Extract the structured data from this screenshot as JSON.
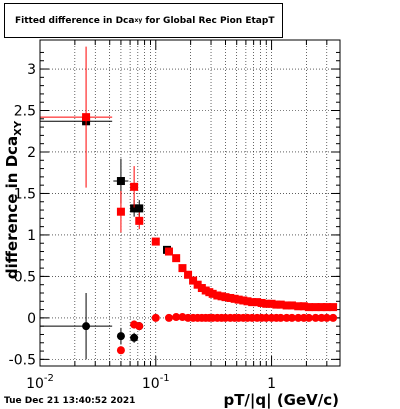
{
  "chart_data": {
    "type": "scatter",
    "title": "Fitted difference in Dca_xy for Global Rec Pion EtapT",
    "title_main": "Fitted difference in Dca",
    "title_sub": "xy",
    "title_suffix": " for Global Rec Pion EtapT",
    "xlabel": "pT/|q| (GeV/c)",
    "ylabel_main": "difference in Dca",
    "ylabel_sub": "XY",
    "x_scale": "log",
    "xlim": [
      0.01,
      3.9
    ],
    "ylim": [
      -0.58,
      3.35
    ],
    "grid": true,
    "y_ticks": [
      -0.5,
      0,
      0.5,
      1,
      1.5,
      2,
      2.5,
      3
    ],
    "y_tick_labels": [
      "-0.5",
      "0",
      "0.5",
      "1",
      "1.5",
      "2",
      "2.5",
      "3"
    ],
    "x_tick_labels": [
      {
        "value": 0.01,
        "base": "10",
        "exp": "-2"
      },
      {
        "value": 0.1,
        "base": "10",
        "exp": "-1"
      },
      {
        "value": 1,
        "base": "1",
        "exp": ""
      }
    ],
    "series": [
      {
        "color": "#000000",
        "marker": "square",
        "points": [
          {
            "x": 0.025,
            "y": 2.37,
            "xerr": [
              0.01,
              0.042
            ],
            "yerr": 0
          },
          {
            "x": 0.05,
            "y": 1.65,
            "yerr": 0.27,
            "xerr": [
              0.043,
              0.058
            ]
          },
          {
            "x": 0.065,
            "y": 1.32,
            "yerr": 0.1
          },
          {
            "x": 0.072,
            "y": 1.32,
            "yerr": 0.1
          },
          {
            "x": 0.125,
            "y": 0.82
          }
        ]
      },
      {
        "color": "#000000",
        "marker": "circle",
        "points": [
          {
            "x": 0.025,
            "y": -0.1,
            "xerr": [
              0.01,
              0.042
            ],
            "yerr": 0.4
          },
          {
            "x": 0.05,
            "y": -0.22,
            "yerr": 0.1
          },
          {
            "x": 0.065,
            "y": -0.24,
            "yerr": 0.06
          },
          {
            "x": 0.072,
            "y": -0.1,
            "yerr": 0.05
          }
        ]
      },
      {
        "color": "#ff0000",
        "marker": "square",
        "points": [
          {
            "x": 0.025,
            "y": 2.42,
            "xerr": [
              0.01,
              0.042
            ],
            "yerr": 0.85
          },
          {
            "x": 0.05,
            "y": 1.28,
            "yerr": 0.25
          },
          {
            "x": 0.065,
            "y": 1.58,
            "yerr": 0.25
          },
          {
            "x": 0.072,
            "y": 1.17,
            "yerr": 0.1
          },
          {
            "x": 0.1,
            "y": 0.92
          },
          {
            "x": 0.13,
            "y": 0.8
          },
          {
            "x": 0.15,
            "y": 0.72
          },
          {
            "x": 0.17,
            "y": 0.6
          },
          {
            "x": 0.19,
            "y": 0.52
          },
          {
            "x": 0.21,
            "y": 0.45
          },
          {
            "x": 0.23,
            "y": 0.4
          },
          {
            "x": 0.25,
            "y": 0.36
          },
          {
            "x": 0.27,
            "y": 0.33
          },
          {
            "x": 0.29,
            "y": 0.31
          },
          {
            "x": 0.31,
            "y": 0.29
          },
          {
            "x": 0.34,
            "y": 0.27
          },
          {
            "x": 0.37,
            "y": 0.26
          },
          {
            "x": 0.4,
            "y": 0.25
          },
          {
            "x": 0.44,
            "y": 0.24
          },
          {
            "x": 0.48,
            "y": 0.23
          },
          {
            "x": 0.52,
            "y": 0.22
          },
          {
            "x": 0.57,
            "y": 0.21
          },
          {
            "x": 0.62,
            "y": 0.2
          },
          {
            "x": 0.68,
            "y": 0.19
          },
          {
            "x": 0.75,
            "y": 0.19
          },
          {
            "x": 0.82,
            "y": 0.18
          },
          {
            "x": 0.9,
            "y": 0.17
          },
          {
            "x": 1.0,
            "y": 0.17
          },
          {
            "x": 1.1,
            "y": 0.16
          },
          {
            "x": 1.2,
            "y": 0.16
          },
          {
            "x": 1.35,
            "y": 0.15
          },
          {
            "x": 1.5,
            "y": 0.15
          },
          {
            "x": 1.7,
            "y": 0.14
          },
          {
            "x": 1.9,
            "y": 0.14
          },
          {
            "x": 2.1,
            "y": 0.13
          },
          {
            "x": 2.4,
            "y": 0.13
          },
          {
            "x": 2.7,
            "y": 0.13
          },
          {
            "x": 3.0,
            "y": 0.13
          },
          {
            "x": 3.4,
            "y": 0.13
          }
        ]
      },
      {
        "color": "#ff0000",
        "marker": "circle",
        "points": [
          {
            "x": 0.05,
            "y": -0.39,
            "yerr": 0.04
          },
          {
            "x": 0.065,
            "y": -0.08,
            "yerr": 0.05
          },
          {
            "x": 0.072,
            "y": -0.1,
            "yerr": 0.04
          },
          {
            "x": 0.1,
            "y": 0.0
          },
          {
            "x": 0.13,
            "y": 0.0
          },
          {
            "x": 0.15,
            "y": 0.01
          },
          {
            "x": 0.17,
            "y": 0.01
          },
          {
            "x": 0.19,
            "y": 0.0
          },
          {
            "x": 0.21,
            "y": 0.0
          },
          {
            "x": 0.23,
            "y": 0.0
          },
          {
            "x": 0.25,
            "y": 0.0
          },
          {
            "x": 0.27,
            "y": 0.0
          },
          {
            "x": 0.29,
            "y": 0.0
          },
          {
            "x": 0.31,
            "y": 0.0
          },
          {
            "x": 0.34,
            "y": 0.0
          },
          {
            "x": 0.37,
            "y": 0.0
          },
          {
            "x": 0.4,
            "y": 0.0
          },
          {
            "x": 0.44,
            "y": 0.0
          },
          {
            "x": 0.48,
            "y": 0.0
          },
          {
            "x": 0.52,
            "y": 0.0
          },
          {
            "x": 0.57,
            "y": 0.0
          },
          {
            "x": 0.62,
            "y": 0.0
          },
          {
            "x": 0.68,
            "y": 0.0
          },
          {
            "x": 0.75,
            "y": 0.0
          },
          {
            "x": 0.82,
            "y": 0.0
          },
          {
            "x": 0.9,
            "y": 0.0
          },
          {
            "x": 1.0,
            "y": 0.0
          },
          {
            "x": 1.1,
            "y": 0.0
          },
          {
            "x": 1.2,
            "y": 0.0
          },
          {
            "x": 1.35,
            "y": 0.0
          },
          {
            "x": 1.5,
            "y": 0.0
          },
          {
            "x": 1.7,
            "y": 0.0
          },
          {
            "x": 1.9,
            "y": 0.0
          },
          {
            "x": 2.1,
            "y": 0.0
          },
          {
            "x": 2.4,
            "y": 0.0
          },
          {
            "x": 2.7,
            "y": 0.0
          },
          {
            "x": 3.0,
            "y": 0.0
          },
          {
            "x": 3.4,
            "y": 0.0
          }
        ]
      }
    ]
  },
  "footer": {
    "timestamp": "Tue Dec 21 13:40:52 2021"
  }
}
